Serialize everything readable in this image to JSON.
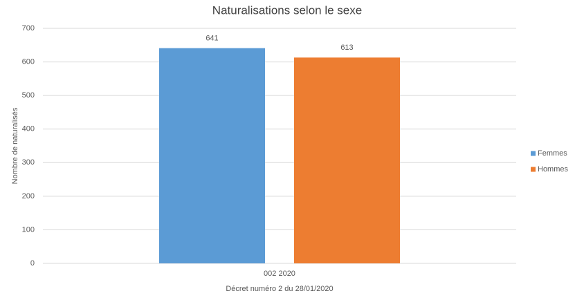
{
  "chart_data": {
    "type": "bar",
    "title": "Naturalisations selon le sexe",
    "x_label": "Décret numéro 2 du 28/01/2020",
    "y_label": "Nombre de naturalisés",
    "categories": [
      "002 2020"
    ],
    "series": [
      {
        "name": "Femmes",
        "color": "#5b9bd5",
        "values": [
          641
        ]
      },
      {
        "name": "Hommes",
        "color": "#ed7d31",
        "values": [
          613
        ]
      }
    ],
    "ylim": [
      0,
      700
    ],
    "yticks": [
      0,
      100,
      200,
      300,
      400,
      500,
      600,
      700
    ],
    "grid": true,
    "legend": "right"
  }
}
